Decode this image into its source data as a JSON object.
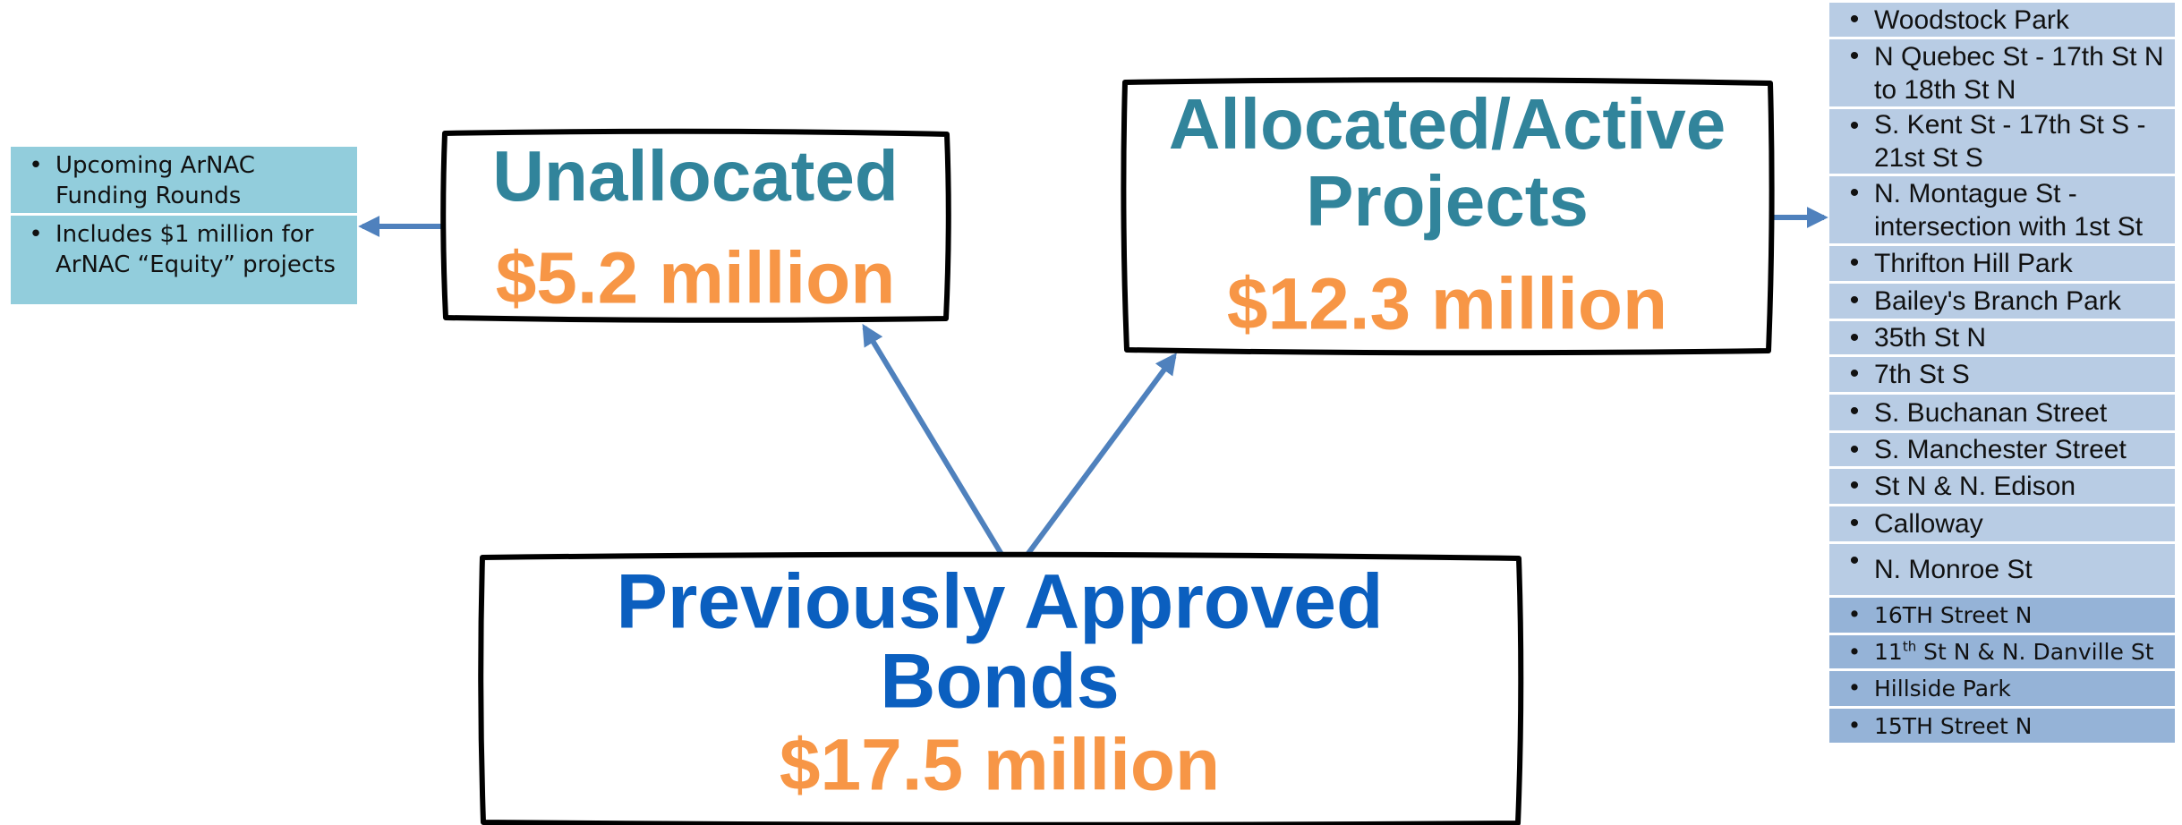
{
  "unallocated": {
    "title": "Unallocated",
    "amount": "$5.2 million"
  },
  "allocated": {
    "title_line1": "Allocated/Active",
    "title_line2": "Projects",
    "amount": "$12.3 million"
  },
  "approved": {
    "title_line1": "Previously Approved",
    "title_line2": "Bonds",
    "amount": "$17.5 million"
  },
  "unallocated_notes": [
    "Upcoming  ArNAC Funding Rounds",
    "Includes $1 million for ArNAC “Equity” projects"
  ],
  "projects": [
    {
      "text": "Woodstock Park"
    },
    {
      "text": "N Quebec St - 17th St N to 18th St N"
    },
    {
      "text": "S. Kent St - 17th St S - 21st St S"
    },
    {
      "text": "N. Montague St - intersection with 1st St"
    },
    {
      "text": "Thrifton Hill Park"
    },
    {
      "text": " Bailey's Branch Park"
    },
    {
      "text": "35th St N"
    },
    {
      "text": "7th St S"
    },
    {
      "text": "S. Buchanan Street"
    },
    {
      "text": "S. Manchester Street"
    },
    {
      "text": "St N & N. Edison"
    },
    {
      "text": "Calloway"
    },
    {
      "text": "N. Monroe St"
    },
    {
      "text": "16TH Street N"
    },
    {
      "text": "11",
      "sup": "th",
      "after": " St N & N. Danville St"
    },
    {
      "text": "Hillside Park"
    },
    {
      "text": "15TH Street N"
    }
  ]
}
